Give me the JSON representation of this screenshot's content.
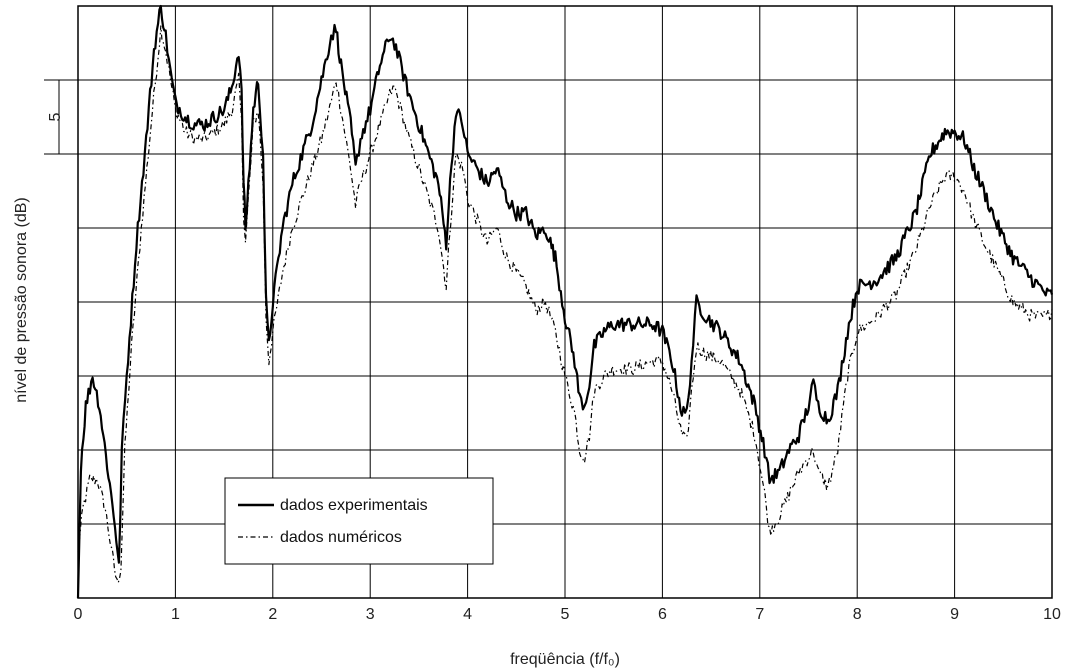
{
  "chart_data": {
    "type": "line",
    "title": "",
    "xlabel": "freqüência (f/f₀)",
    "ylabel": "nível de pressão sonora (dB)",
    "xlim": [
      0,
      10
    ],
    "ylim": [
      0,
      40
    ],
    "x_ticks": [
      "0",
      "1",
      "2",
      "3",
      "4",
      "5",
      "6",
      "7",
      "8",
      "9",
      "10"
    ],
    "scale_marker": {
      "label": "5",
      "from": 30,
      "to": 35
    },
    "grid": true,
    "legend_position": "bottom-left",
    "series": [
      {
        "name": "dados experimentais",
        "style": "solid",
        "color": "#000000",
        "points": [
          [
            0.0,
            0
          ],
          [
            0.03,
            9
          ],
          [
            0.08,
            13
          ],
          [
            0.15,
            15
          ],
          [
            0.22,
            13
          ],
          [
            0.3,
            9
          ],
          [
            0.38,
            5
          ],
          [
            0.42,
            2
          ],
          [
            0.45,
            10
          ],
          [
            0.5,
            15
          ],
          [
            0.6,
            24
          ],
          [
            0.7,
            31
          ],
          [
            0.78,
            37
          ],
          [
            0.85,
            40
          ],
          [
            0.9,
            38
          ],
          [
            0.95,
            35.5
          ],
          [
            1.0,
            33.5
          ],
          [
            1.1,
            32.5
          ],
          [
            1.2,
            32
          ],
          [
            1.3,
            32
          ],
          [
            1.4,
            32.5
          ],
          [
            1.5,
            33
          ],
          [
            1.58,
            34.5
          ],
          [
            1.65,
            37
          ],
          [
            1.68,
            34
          ],
          [
            1.7,
            28
          ],
          [
            1.72,
            25
          ],
          [
            1.75,
            28
          ],
          [
            1.8,
            33
          ],
          [
            1.85,
            35
          ],
          [
            1.9,
            30
          ],
          [
            1.93,
            20
          ],
          [
            1.96,
            17
          ],
          [
            2.0,
            20
          ],
          [
            2.1,
            25
          ],
          [
            2.2,
            28
          ],
          [
            2.3,
            30
          ],
          [
            2.4,
            32
          ],
          [
            2.5,
            35
          ],
          [
            2.6,
            38
          ],
          [
            2.65,
            38.5
          ],
          [
            2.7,
            36
          ],
          [
            2.8,
            32
          ],
          [
            2.85,
            29
          ],
          [
            2.9,
            31
          ],
          [
            3.0,
            33
          ],
          [
            3.1,
            36
          ],
          [
            3.2,
            38
          ],
          [
            3.25,
            37.5
          ],
          [
            3.4,
            34
          ],
          [
            3.6,
            30
          ],
          [
            3.7,
            28
          ],
          [
            3.78,
            24
          ],
          [
            3.82,
            28
          ],
          [
            3.88,
            33
          ],
          [
            3.95,
            32
          ],
          [
            4.0,
            30
          ],
          [
            4.1,
            29
          ],
          [
            4.2,
            28
          ],
          [
            4.3,
            29
          ],
          [
            4.4,
            27
          ],
          [
            4.5,
            26
          ],
          [
            4.6,
            26
          ],
          [
            4.7,
            24.5
          ],
          [
            4.8,
            25
          ],
          [
            4.85,
            24
          ],
          [
            4.9,
            23
          ],
          [
            5.0,
            19
          ],
          [
            5.1,
            16
          ],
          [
            5.15,
            13.5
          ],
          [
            5.2,
            13
          ],
          [
            5.25,
            14.5
          ],
          [
            5.3,
            17
          ],
          [
            5.4,
            18
          ],
          [
            5.5,
            18.5
          ],
          [
            5.7,
            18.5
          ],
          [
            5.9,
            18.5
          ],
          [
            6.0,
            18
          ],
          [
            6.1,
            16
          ],
          [
            6.2,
            12.5
          ],
          [
            6.25,
            12.5
          ],
          [
            6.3,
            16
          ],
          [
            6.35,
            20
          ],
          [
            6.45,
            19
          ],
          [
            6.6,
            18
          ],
          [
            6.8,
            16
          ],
          [
            6.95,
            13
          ],
          [
            7.05,
            10
          ],
          [
            7.1,
            8
          ],
          [
            7.2,
            8.5
          ],
          [
            7.3,
            10
          ],
          [
            7.4,
            11
          ],
          [
            7.5,
            13
          ],
          [
            7.55,
            14.5
          ],
          [
            7.6,
            13
          ],
          [
            7.7,
            12
          ],
          [
            7.8,
            14
          ],
          [
            7.9,
            18
          ],
          [
            8.0,
            21
          ],
          [
            8.2,
            21.5
          ],
          [
            8.4,
            23
          ],
          [
            8.6,
            26
          ],
          [
            8.75,
            30
          ],
          [
            8.9,
            31.5
          ],
          [
            9.0,
            31.5
          ],
          [
            9.1,
            31
          ],
          [
            9.2,
            29
          ],
          [
            9.3,
            27.5
          ],
          [
            9.45,
            25
          ],
          [
            9.6,
            23
          ],
          [
            9.8,
            21.5
          ],
          [
            9.95,
            20.5
          ],
          [
            10.0,
            20.5
          ]
        ]
      },
      {
        "name": "dados numéricos",
        "style": "dash-dot",
        "color": "#000000",
        "points": [
          [
            0.0,
            3
          ],
          [
            0.05,
            6
          ],
          [
            0.12,
            8
          ],
          [
            0.2,
            8
          ],
          [
            0.28,
            6
          ],
          [
            0.35,
            3
          ],
          [
            0.4,
            1
          ],
          [
            0.44,
            2
          ],
          [
            0.48,
            10
          ],
          [
            0.55,
            17
          ],
          [
            0.65,
            25
          ],
          [
            0.75,
            32
          ],
          [
            0.85,
            38.5
          ],
          [
            0.9,
            37
          ],
          [
            0.95,
            35
          ],
          [
            1.0,
            33
          ],
          [
            1.1,
            31.5
          ],
          [
            1.2,
            31
          ],
          [
            1.3,
            31
          ],
          [
            1.4,
            31.5
          ],
          [
            1.5,
            32
          ],
          [
            1.58,
            33
          ],
          [
            1.65,
            35
          ],
          [
            1.68,
            32
          ],
          [
            1.7,
            26
          ],
          [
            1.72,
            24
          ],
          [
            1.75,
            27
          ],
          [
            1.8,
            32
          ],
          [
            1.85,
            33
          ],
          [
            1.9,
            28
          ],
          [
            1.93,
            19
          ],
          [
            1.96,
            16
          ],
          [
            2.0,
            18
          ],
          [
            2.1,
            22
          ],
          [
            2.2,
            25
          ],
          [
            2.3,
            27
          ],
          [
            2.4,
            29
          ],
          [
            2.5,
            31
          ],
          [
            2.6,
            33.5
          ],
          [
            2.65,
            35
          ],
          [
            2.7,
            33
          ],
          [
            2.8,
            29
          ],
          [
            2.85,
            26.5
          ],
          [
            2.9,
            28
          ],
          [
            3.0,
            30
          ],
          [
            3.1,
            32
          ],
          [
            3.2,
            34
          ],
          [
            3.25,
            34.5
          ],
          [
            3.4,
            31
          ],
          [
            3.6,
            27
          ],
          [
            3.7,
            25
          ],
          [
            3.78,
            21
          ],
          [
            3.82,
            25
          ],
          [
            3.88,
            30
          ],
          [
            3.95,
            29
          ],
          [
            4.0,
            27
          ],
          [
            4.1,
            25.5
          ],
          [
            4.2,
            24
          ],
          [
            4.3,
            25
          ],
          [
            4.4,
            23
          ],
          [
            4.5,
            22
          ],
          [
            4.6,
            21
          ],
          [
            4.7,
            19.5
          ],
          [
            4.8,
            20
          ],
          [
            4.85,
            19
          ],
          [
            4.9,
            18
          ],
          [
            5.0,
            15
          ],
          [
            5.1,
            12.5
          ],
          [
            5.15,
            10
          ],
          [
            5.2,
            9.5
          ],
          [
            5.25,
            11
          ],
          [
            5.3,
            14
          ],
          [
            5.4,
            15
          ],
          [
            5.5,
            15.5
          ],
          [
            5.7,
            15.5
          ],
          [
            5.9,
            16
          ],
          [
            6.0,
            16
          ],
          [
            6.1,
            14
          ],
          [
            6.2,
            11
          ],
          [
            6.25,
            10.5
          ],
          [
            6.3,
            14
          ],
          [
            6.35,
            17
          ],
          [
            6.45,
            16.5
          ],
          [
            6.6,
            16
          ],
          [
            6.8,
            14
          ],
          [
            6.95,
            11
          ],
          [
            7.05,
            7
          ],
          [
            7.1,
            4.5
          ],
          [
            7.2,
            5.5
          ],
          [
            7.3,
            7
          ],
          [
            7.4,
            8.5
          ],
          [
            7.5,
            9.5
          ],
          [
            7.55,
            10
          ],
          [
            7.6,
            8.5
          ],
          [
            7.7,
            7.5
          ],
          [
            7.8,
            10
          ],
          [
            7.9,
            15
          ],
          [
            8.0,
            18
          ],
          [
            8.2,
            19
          ],
          [
            8.4,
            20.5
          ],
          [
            8.6,
            23.5
          ],
          [
            8.75,
            26.5
          ],
          [
            8.9,
            28.5
          ],
          [
            9.0,
            28.5
          ],
          [
            9.1,
            27.5
          ],
          [
            9.2,
            25.5
          ],
          [
            9.3,
            24
          ],
          [
            9.45,
            22
          ],
          [
            9.6,
            20
          ],
          [
            9.8,
            19
          ],
          [
            9.95,
            19
          ],
          [
            10.0,
            19.5
          ]
        ]
      }
    ]
  }
}
